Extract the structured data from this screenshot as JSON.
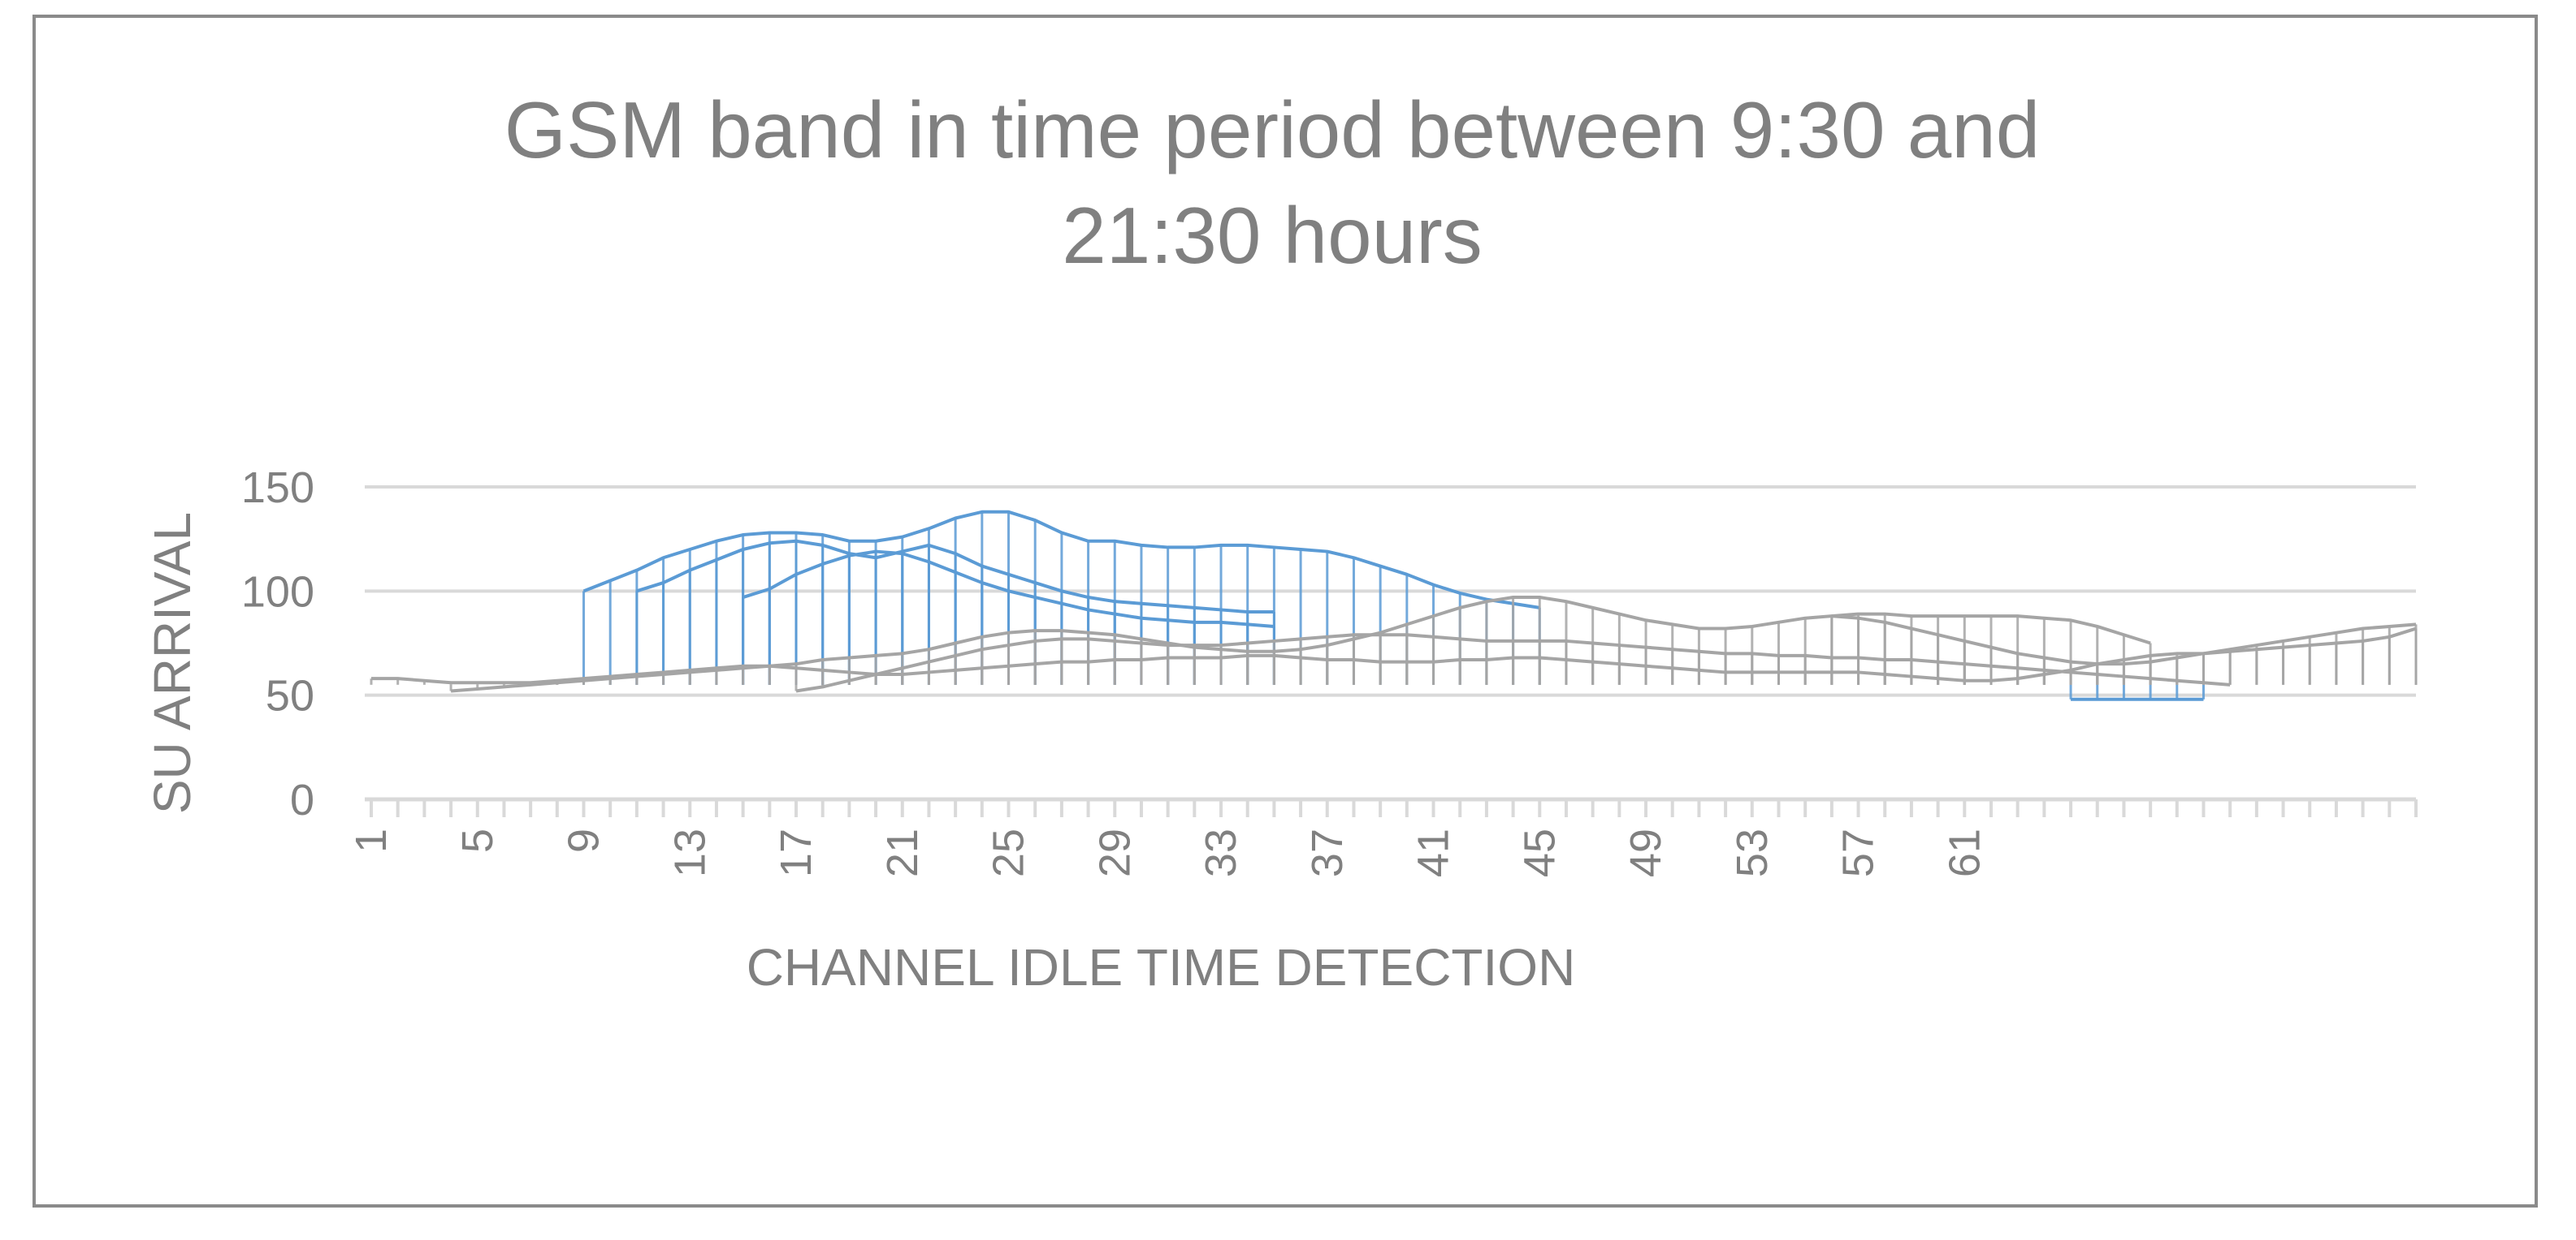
{
  "chart_data": {
    "type": "line",
    "subtype": "3d-wireframe-surface",
    "title": "GSM band in time period between 9:30 and 21:30 hours",
    "title_lines": [
      "GSM band in time period between 9:30 and",
      "21:30 hours"
    ],
    "xlabel": "CHANNEL IDLE TIME  DETECTION",
    "ylabel": "SU ARRIVAL",
    "ylim": [
      0,
      150
    ],
    "yticks": [
      0,
      50,
      100,
      150
    ],
    "xlim": [
      1,
      78
    ],
    "xticks": [
      1,
      5,
      9,
      13,
      17,
      21,
      25,
      29,
      33,
      37,
      41,
      45,
      49,
      53,
      57,
      61
    ],
    "grid": true,
    "legend": "none",
    "colors": {
      "upper_band": "#5b9bd5",
      "lower_band": "#a5a5a5",
      "axis": "#d9d9d9",
      "text": "#808080"
    },
    "series": [
      {
        "band": "upper",
        "values": [
          null,
          null,
          null,
          null,
          null,
          null,
          null,
          null,
          100,
          105,
          110,
          116,
          120,
          124,
          127,
          128,
          128,
          127,
          124,
          124,
          126,
          130,
          135,
          138,
          138,
          134,
          128,
          124,
          124,
          122,
          121,
          121,
          122,
          122,
          121,
          120,
          119,
          116,
          112,
          108,
          103,
          99,
          96,
          94,
          92
        ]
      },
      {
        "band": "upper",
        "values": [
          null,
          null,
          null,
          null,
          null,
          null,
          null,
          null,
          null,
          null,
          100,
          104,
          110,
          115,
          120,
          123,
          124,
          122,
          118,
          116,
          119,
          122,
          118,
          112,
          108,
          104,
          100,
          97,
          95,
          94,
          93,
          92,
          91,
          90,
          90
        ]
      },
      {
        "band": "upper",
        "values": [
          null,
          null,
          null,
          null,
          null,
          null,
          null,
          null,
          null,
          null,
          null,
          null,
          null,
          null,
          97,
          101,
          108,
          113,
          117,
          119,
          118,
          114,
          109,
          104,
          100,
          97,
          94,
          91,
          89,
          87,
          86,
          85,
          85,
          84,
          83
        ]
      },
      {
        "band": "upper",
        "values": [
          null,
          null,
          null,
          null,
          null,
          null,
          null,
          null,
          null,
          null,
          null,
          null,
          null,
          null,
          null,
          null,
          null,
          null,
          null,
          null,
          null,
          null,
          null,
          null,
          null,
          null,
          null,
          null,
          null,
          null,
          null,
          null,
          null,
          null,
          null,
          null,
          null,
          null,
          null,
          null,
          null,
          null,
          null,
          null,
          null,
          null,
          null,
          null,
          null,
          null,
          null,
          null,
          null,
          null,
          null,
          null,
          null,
          null,
          null,
          null,
          null,
          null,
          null,
          null,
          48,
          48,
          48,
          48,
          48,
          48
        ]
      },
      {
        "band": "lower",
        "values": [
          58,
          58,
          57,
          56,
          56,
          56,
          56,
          57,
          58,
          59,
          60,
          61,
          62,
          63,
          64,
          64,
          63,
          62,
          61,
          60,
          60,
          61,
          62,
          63,
          64,
          65,
          66,
          66,
          67,
          67,
          68,
          68,
          68,
          69,
          69,
          68,
          67,
          67,
          66,
          66,
          66,
          67,
          67,
          68,
          68,
          67,
          66,
          65,
          64,
          63,
          62,
          61,
          61,
          61,
          61,
          61,
          61,
          60,
          59,
          58,
          57,
          57,
          58,
          60,
          62,
          65,
          67,
          69,
          70,
          70,
          71,
          72,
          73,
          74,
          75,
          76,
          78,
          82
        ]
      },
      {
        "band": "lower",
        "values": [
          null,
          null,
          null,
          52,
          53,
          54,
          55,
          56,
          57,
          58,
          59,
          60,
          61,
          62,
          63,
          64,
          65,
          67,
          68,
          69,
          70,
          72,
          75,
          78,
          80,
          81,
          81,
          80,
          79,
          77,
          75,
          73,
          72,
          71,
          71,
          72,
          74,
          77,
          80,
          84,
          88,
          92,
          95,
          97,
          97,
          95,
          92,
          89,
          86,
          84,
          82,
          82,
          83,
          85,
          87,
          88,
          87,
          85,
          82,
          79,
          76,
          73,
          70,
          68,
          66,
          65,
          65,
          66,
          68,
          70,
          72,
          74,
          76,
          78,
          80,
          82,
          83,
          84
        ]
      },
      {
        "band": "lower",
        "values": [
          null,
          null,
          null,
          null,
          null,
          null,
          null,
          null,
          null,
          null,
          null,
          null,
          null,
          null,
          null,
          null,
          null,
          null,
          null,
          null,
          null,
          null,
          null,
          null,
          null,
          null,
          null,
          null,
          null,
          null,
          null,
          null,
          null,
          null,
          null,
          null,
          null,
          null,
          null,
          null,
          null,
          null,
          null,
          null,
          null,
          null,
          null,
          null,
          null,
          null,
          null,
          null,
          null,
          null,
          null,
          88,
          89,
          89,
          88,
          88,
          88,
          88,
          88,
          87,
          86,
          83,
          79,
          75
        ]
      },
      {
        "band": "lower",
        "values": [
          null,
          null,
          null,
          null,
          null,
          null,
          null,
          null,
          null,
          null,
          null,
          null,
          null,
          null,
          null,
          null,
          52,
          54,
          57,
          60,
          63,
          66,
          69,
          72,
          74,
          76,
          77,
          77,
          76,
          75,
          74,
          74,
          74,
          75,
          76,
          77,
          78,
          79,
          79,
          79,
          78,
          77,
          76,
          76,
          76,
          76,
          75,
          74,
          73,
          72,
          71,
          70,
          70,
          69,
          69,
          68,
          68,
          67,
          67,
          66,
          65,
          64,
          63,
          62,
          61,
          60,
          59,
          58,
          57,
          56,
          55
        ]
      }
    ]
  }
}
